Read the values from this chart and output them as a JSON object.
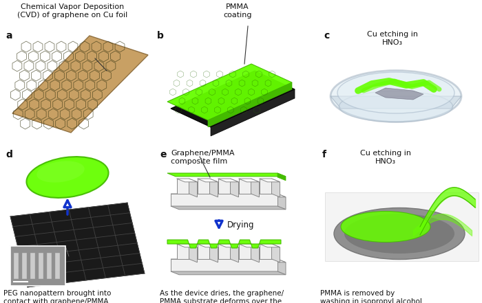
{
  "bg_color": "#ffffff",
  "title_a": "Chemical Vapor Deposition\n(CVD) of graphene on Cu foil",
  "title_b": "PMMA\ncoating",
  "label_c": "c",
  "label_cu_top": "Cu etching in\nHNO₃",
  "label_d": "d",
  "label_e": "e",
  "title_e": "Graphene/PMMA\ncomposite film",
  "label_drying": "Drying",
  "label_f": "f",
  "caption_d": "PEG nanopattern brought into\ncontact with graphene/PMMA",
  "caption_e": "As the device dries, the graphene/\nPMMA substrate deforms over the\nPEG topography",
  "caption_f": "PMMA is removed by\nwashing in isopropyl alcohol",
  "graphene_green": "#66ff00",
  "graphene_dark": "#44bb00",
  "cu_tan": "#c8a064",
  "cu_dark": "#9a7040",
  "white_color": "#ffffff",
  "light_gray": "#e8e8e8",
  "mid_gray": "#aaaaaa",
  "dark_gray": "#555555",
  "arrow_blue": "#1133cc",
  "text_black": "#111111",
  "peg_white": "#f0f0f0",
  "peg_edge": "#888888"
}
